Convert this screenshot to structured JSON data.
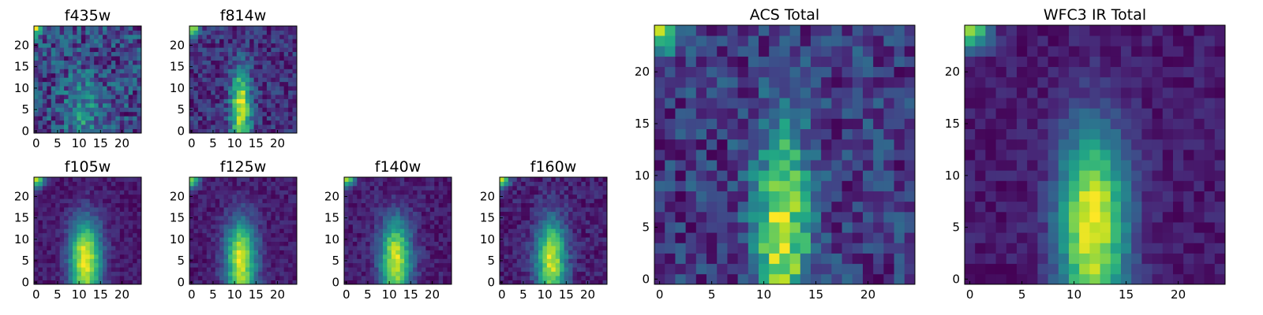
{
  "chart_data": [
    {
      "type": "heatmap",
      "id": "f435w",
      "title": "f435w",
      "grid": [
        25,
        25
      ],
      "xlim": [
        -0.5,
        24.5
      ],
      "ylim": [
        -0.5,
        24.5
      ],
      "origin": "lower",
      "xticks": [
        0,
        5,
        10,
        15,
        20
      ],
      "yticks": [
        0,
        5,
        10,
        15,
        20
      ],
      "colormap": "viridis",
      "profile": "noisy-vertical-source",
      "source_center_x": 11,
      "source_center_y": 5,
      "source_width": 3.0,
      "source_strength": 0.35,
      "noise": 0.3,
      "base": 0.6,
      "corner_hot": "top-left",
      "seed": 11
    },
    {
      "type": "heatmap",
      "id": "f814w",
      "title": "f814w",
      "grid": [
        25,
        25
      ],
      "xlim": [
        -0.5,
        24.5
      ],
      "ylim": [
        -0.5,
        24.5
      ],
      "origin": "lower",
      "xticks": [
        0,
        5,
        10,
        15,
        20
      ],
      "yticks": [
        0,
        5,
        10,
        15,
        20
      ],
      "colormap": "viridis",
      "profile": "vertical-source",
      "source_center_x": 11.5,
      "source_center_y": 6,
      "source_width": 1.6,
      "source_strength": 1.0,
      "noise": 0.18,
      "base": 0.2,
      "corner_hot": "top-left",
      "seed": 23
    },
    {
      "type": "heatmap",
      "id": "f105w",
      "title": "f105w",
      "grid": [
        25,
        25
      ],
      "xlim": [
        -0.5,
        24.5
      ],
      "ylim": [
        -0.5,
        24.5
      ],
      "origin": "lower",
      "xticks": [
        0,
        5,
        10,
        15,
        20
      ],
      "yticks": [
        0,
        5,
        10,
        15,
        20
      ],
      "colormap": "viridis",
      "profile": "vertical-source",
      "source_center_x": 11.5,
      "source_center_y": 6,
      "source_width": 2.6,
      "source_strength": 1.0,
      "noise": 0.08,
      "base": 0.18,
      "corner_hot": "top-left",
      "seed": 37
    },
    {
      "type": "heatmap",
      "id": "f125w",
      "title": "f125w",
      "grid": [
        25,
        25
      ],
      "xlim": [
        -0.5,
        24.5
      ],
      "ylim": [
        -0.5,
        24.5
      ],
      "origin": "lower",
      "xticks": [
        0,
        5,
        10,
        15,
        20
      ],
      "yticks": [
        0,
        5,
        10,
        15,
        20
      ],
      "colormap": "viridis",
      "profile": "vertical-source",
      "source_center_x": 11.5,
      "source_center_y": 6,
      "source_width": 2.5,
      "source_strength": 1.0,
      "noise": 0.09,
      "base": 0.2,
      "corner_hot": "top-left",
      "seed": 41
    },
    {
      "type": "heatmap",
      "id": "f140w",
      "title": "f140w",
      "grid": [
        25,
        25
      ],
      "xlim": [
        -0.5,
        24.5
      ],
      "ylim": [
        -0.5,
        24.5
      ],
      "origin": "lower",
      "xticks": [
        0,
        5,
        10,
        15,
        20
      ],
      "yticks": [
        0,
        5,
        10,
        15,
        20
      ],
      "colormap": "viridis",
      "profile": "vertical-source",
      "source_center_x": 11.5,
      "source_center_y": 6,
      "source_width": 2.5,
      "source_strength": 1.0,
      "noise": 0.1,
      "base": 0.2,
      "corner_hot": "top-left",
      "seed": 53
    },
    {
      "type": "heatmap",
      "id": "f160w",
      "title": "f160w",
      "grid": [
        25,
        25
      ],
      "xlim": [
        -0.5,
        24.5
      ],
      "ylim": [
        -0.5,
        24.5
      ],
      "origin": "lower",
      "xticks": [
        0,
        5,
        10,
        15,
        20
      ],
      "yticks": [
        0,
        5,
        10,
        15,
        20
      ],
      "colormap": "viridis",
      "profile": "vertical-source",
      "source_center_x": 11.5,
      "source_center_y": 6,
      "source_width": 2.4,
      "source_strength": 1.0,
      "noise": 0.11,
      "base": 0.15,
      "corner_hot": "top-left",
      "seed": 67
    },
    {
      "type": "heatmap",
      "id": "acs-total",
      "title": "ACS Total",
      "grid": [
        25,
        25
      ],
      "xlim": [
        -0.5,
        24.5
      ],
      "ylim": [
        -0.5,
        24.5
      ],
      "origin": "lower",
      "xticks": [
        0,
        5,
        10,
        15,
        20
      ],
      "yticks": [
        0,
        5,
        10,
        15,
        20
      ],
      "colormap": "viridis",
      "profile": "vertical-source",
      "source_center_x": 11.8,
      "source_center_y": 6,
      "source_width": 1.8,
      "source_strength": 0.85,
      "noise": 0.2,
      "base": 0.32,
      "corner_hot": "top-left",
      "seed": 79
    },
    {
      "type": "heatmap",
      "id": "wfc3-ir-total",
      "title": "WFC3 IR Total",
      "grid": [
        25,
        25
      ],
      "xlim": [
        -0.5,
        24.5
      ],
      "ylim": [
        -0.5,
        24.5
      ],
      "origin": "lower",
      "xticks": [
        0,
        5,
        10,
        15,
        20
      ],
      "yticks": [
        0,
        5,
        10,
        15,
        20
      ],
      "colormap": "viridis",
      "profile": "vertical-source",
      "source_center_x": 11.8,
      "source_center_y": 6,
      "source_width": 2.3,
      "source_strength": 1.0,
      "noise": 0.08,
      "base": 0.16,
      "corner_hot": "top-left",
      "seed": 97
    }
  ]
}
